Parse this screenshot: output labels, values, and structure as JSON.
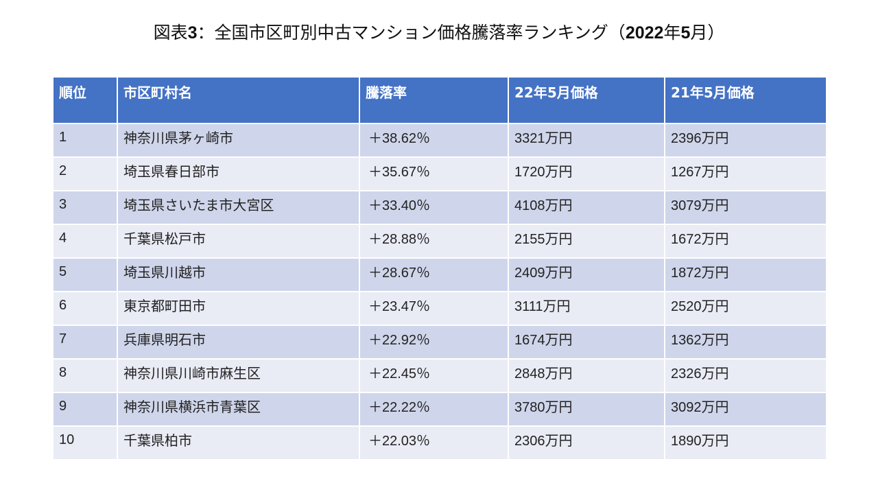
{
  "title": {
    "prefix": "図表",
    "figure_no": "3",
    "main": "：全国市区町別中古マンション価格騰落率ランキング（",
    "year": "2022",
    "year_suffix": "年",
    "month": "5",
    "month_suffix": "月）"
  },
  "table": {
    "headers": [
      "順位",
      "市区町村名",
      "騰落率",
      "22年5月価格",
      "21年5月価格"
    ],
    "rows": [
      {
        "rank": "1",
        "name": "神奈川県茅ヶ崎市",
        "rate": "＋38.62％",
        "price_2022": "3321万円",
        "price_2021": "2396万円"
      },
      {
        "rank": "2",
        "name": "埼玉県春日部市",
        "rate": "＋35.67％",
        "price_2022": "1720万円",
        "price_2021": "1267万円"
      },
      {
        "rank": "3",
        "name": "埼玉県さいたま市大宮区",
        "rate": "＋33.40％",
        "price_2022": "4108万円",
        "price_2021": "3079万円"
      },
      {
        "rank": "4",
        "name": "千葉県松戸市",
        "rate": "＋28.88％",
        "price_2022": "2155万円",
        "price_2021": "1672万円"
      },
      {
        "rank": "5",
        "name": "埼玉県川越市",
        "rate": "＋28.67％",
        "price_2022": "2409万円",
        "price_2021": "1872万円"
      },
      {
        "rank": "6",
        "name": "東京都町田市",
        "rate": "＋23.47％",
        "price_2022": "3111万円",
        "price_2021": "2520万円"
      },
      {
        "rank": "7",
        "name": "兵庫県明石市",
        "rate": "＋22.92％",
        "price_2022": "1674万円",
        "price_2021": "1362万円"
      },
      {
        "rank": "8",
        "name": "神奈川県川崎市麻生区",
        "rate": "＋22.45％",
        "price_2022": "2848万円",
        "price_2021": "2326万円"
      },
      {
        "rank": "9",
        "name": "神奈川県横浜市青葉区",
        "rate": "＋22.22％",
        "price_2022": "3780万円",
        "price_2021": "3092万円"
      },
      {
        "rank": "10",
        "name": "千葉県柏市",
        "rate": "＋22.03％",
        "price_2022": "2306万円",
        "price_2021": "1890万円"
      }
    ]
  },
  "colors": {
    "header_bg": "#4472C4",
    "row_odd_bg": "#CFD5EA",
    "row_even_bg": "#E9EBF5"
  }
}
